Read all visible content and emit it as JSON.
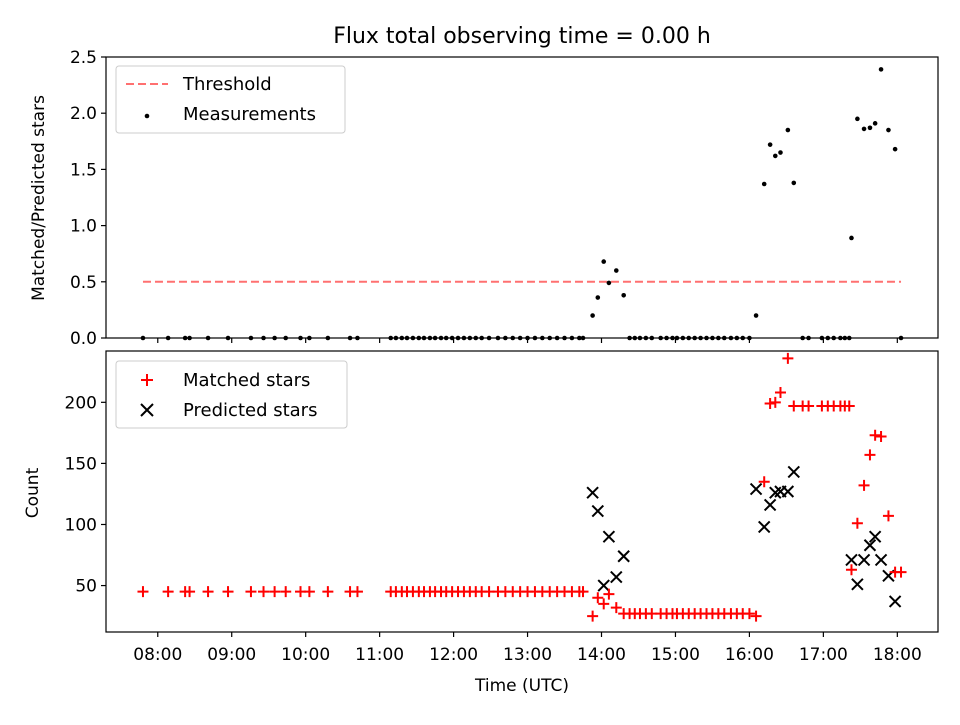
{
  "chart_data": [
    {
      "type": "scatter",
      "title": "Flux total observing time = 0.00 h",
      "xlabel": "",
      "ylabel": "Matched/Predicted stars",
      "ylim": [
        0,
        2.5
      ],
      "yticks": [
        "0.0",
        "0.5",
        "1.0",
        "1.5",
        "2.0",
        "2.5"
      ],
      "legend": {
        "placement": "top-left",
        "entries": [
          "Threshold",
          "Measurements"
        ]
      },
      "threshold": {
        "name": "Threshold",
        "x": [
          7.8,
          18.05
        ],
        "y": 0.5,
        "color": "#ff7070"
      },
      "series": [
        {
          "name": "Measurements",
          "color": "#000000",
          "x": [
            7.8,
            8.14,
            8.37,
            8.43,
            8.68,
            8.95,
            9.26,
            9.43,
            9.58,
            9.73,
            9.93,
            10.05,
            10.3,
            10.6,
            10.7,
            11.15,
            11.22,
            11.3,
            11.37,
            11.45,
            11.53,
            11.6,
            11.68,
            11.75,
            11.83,
            11.9,
            11.98,
            12.06,
            12.14,
            12.22,
            12.3,
            12.38,
            12.48,
            12.6,
            12.7,
            12.8,
            12.9,
            13.0,
            13.1,
            13.2,
            13.3,
            13.4,
            13.5,
            13.6,
            13.7,
            13.75,
            13.88,
            13.95,
            14.03,
            14.1,
            14.2,
            14.3,
            14.38,
            14.45,
            14.52,
            14.6,
            14.68,
            14.8,
            14.88,
            14.96,
            15.02,
            15.1,
            15.18,
            15.26,
            15.34,
            15.42,
            15.5,
            15.58,
            15.66,
            15.75,
            15.83,
            15.91,
            16.0,
            16.09,
            16.2,
            16.28,
            16.35,
            16.42,
            16.52,
            16.6,
            16.72,
            16.8,
            16.98,
            17.06,
            17.14,
            17.23,
            17.29,
            17.35,
            17.38,
            17.46,
            17.55,
            17.63,
            17.7,
            17.78,
            17.88,
            17.97,
            18.05
          ],
          "y": [
            0,
            0,
            0,
            0,
            0,
            0,
            0,
            0,
            0,
            0,
            0,
            0,
            0,
            0,
            0,
            0,
            0,
            0,
            0,
            0,
            0,
            0,
            0,
            0,
            0,
            0,
            0,
            0,
            0,
            0,
            0,
            0,
            0,
            0,
            0,
            0,
            0,
            0,
            0,
            0,
            0,
            0,
            0,
            0,
            0,
            0,
            0.2,
            0.36,
            0.68,
            0.49,
            0.6,
            0.38,
            0,
            0,
            0,
            0,
            0,
            0,
            0,
            0,
            0,
            0,
            0,
            0,
            0,
            0,
            0,
            0,
            0,
            0,
            0,
            0,
            0,
            0.2,
            1.37,
            1.72,
            1.62,
            1.65,
            1.85,
            1.38,
            0,
            0,
            0,
            0,
            0,
            0,
            0,
            0,
            0.89,
            1.95,
            1.86,
            1.87,
            1.91,
            2.39,
            1.85,
            1.68,
            0
          ]
        }
      ]
    },
    {
      "type": "scatter",
      "title": "",
      "xlabel": "Time (UTC)",
      "ylabel": "Count",
      "xlim": [
        7.3,
        18.55
      ],
      "ylim": [
        12,
        242
      ],
      "yticks": [
        50,
        100,
        150,
        200
      ],
      "xticks": [
        8,
        9,
        10,
        11,
        12,
        13,
        14,
        15,
        16,
        17,
        18
      ],
      "xtick_labels": [
        "08:00",
        "09:00",
        "10:00",
        "11:00",
        "12:00",
        "13:00",
        "14:00",
        "15:00",
        "16:00",
        "17:00",
        "18:00"
      ],
      "legend": {
        "placement": "top-left",
        "entries": [
          "Matched stars",
          "Predicted stars"
        ]
      },
      "series": [
        {
          "name": "Matched stars",
          "color": "#ff0000",
          "marker": "+",
          "x": [
            7.8,
            8.14,
            8.37,
            8.43,
            8.68,
            8.95,
            9.26,
            9.43,
            9.58,
            9.73,
            9.93,
            10.05,
            10.3,
            10.6,
            10.7,
            11.15,
            11.22,
            11.3,
            11.37,
            11.45,
            11.53,
            11.6,
            11.68,
            11.75,
            11.83,
            11.9,
            11.98,
            12.06,
            12.14,
            12.22,
            12.3,
            12.38,
            12.48,
            12.6,
            12.7,
            12.8,
            12.9,
            13.0,
            13.1,
            13.2,
            13.3,
            13.4,
            13.5,
            13.6,
            13.7,
            13.75,
            13.88,
            13.95,
            14.03,
            14.1,
            14.2,
            14.3,
            14.38,
            14.45,
            14.52,
            14.6,
            14.68,
            14.8,
            14.88,
            14.96,
            15.02,
            15.1,
            15.18,
            15.26,
            15.34,
            15.42,
            15.5,
            15.58,
            15.66,
            15.75,
            15.83,
            15.91,
            16.0,
            16.09,
            16.2,
            16.28,
            16.35,
            16.42,
            16.52,
            16.6,
            16.72,
            16.8,
            16.98,
            17.06,
            17.14,
            17.23,
            17.29,
            17.35,
            17.38,
            17.46,
            17.55,
            17.63,
            17.7,
            17.78,
            17.88,
            17.97,
            18.05
          ],
          "y": [
            45,
            45,
            45,
            45,
            45,
            45,
            45,
            45,
            45,
            45,
            45,
            45,
            45,
            45,
            45,
            45,
            45,
            45,
            45,
            45,
            45,
            45,
            45,
            45,
            45,
            45,
            45,
            45,
            45,
            45,
            45,
            45,
            45,
            45,
            45,
            45,
            45,
            45,
            45,
            45,
            45,
            45,
            45,
            45,
            45,
            45,
            25,
            40,
            35,
            43,
            32,
            27,
            27,
            27,
            27,
            27,
            27,
            27,
            27,
            27,
            27,
            27,
            27,
            27,
            27,
            27,
            27,
            27,
            27,
            27,
            27,
            27,
            27,
            25,
            135,
            199,
            200,
            208,
            236,
            197,
            197,
            197,
            197,
            197,
            197,
            197,
            197,
            197,
            63,
            101,
            132,
            157,
            173,
            172,
            107,
            61,
            61
          ]
        },
        {
          "name": "Predicted stars",
          "color": "#000000",
          "marker": "x",
          "x": [
            13.88,
            13.95,
            14.03,
            14.1,
            14.2,
            14.3,
            16.09,
            16.2,
            16.28,
            16.35,
            16.42,
            16.52,
            16.6,
            17.38,
            17.46,
            17.55,
            17.63,
            17.7,
            17.78,
            17.88,
            17.97
          ],
          "y": [
            126,
            111,
            50,
            90,
            57,
            74,
            129,
            98,
            116,
            126,
            127,
            127,
            143,
            71,
            51,
            71,
            83,
            90,
            71,
            58,
            37
          ]
        }
      ]
    }
  ]
}
